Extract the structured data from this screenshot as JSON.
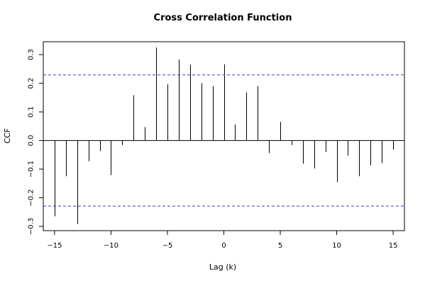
{
  "chart_data": {
    "type": "bar",
    "title": "Cross Correlation Function",
    "xlabel": "Lag (k)",
    "ylabel": "CCF",
    "xlim": [
      -16,
      16
    ],
    "ylim": [
      -0.315,
      0.345
    ],
    "x_ticks": [
      -15,
      -10,
      -5,
      0,
      5,
      10,
      15
    ],
    "x_tick_labels": [
      "−15",
      "−10",
      "−5",
      "0",
      "5",
      "10",
      "15"
    ],
    "y_ticks": [
      -0.3,
      -0.2,
      -0.1,
      0.0,
      0.1,
      0.2,
      0.3
    ],
    "y_tick_labels": [
      "−0.3",
      "−0.2",
      "−0.1",
      "0.0",
      "0.1",
      "0.2",
      "0.3"
    ],
    "lags": [
      -15,
      -14,
      -13,
      -12,
      -11,
      -10,
      -9,
      -8,
      -7,
      -6,
      -5,
      -4,
      -3,
      -2,
      -1,
      0,
      1,
      2,
      3,
      4,
      5,
      6,
      7,
      8,
      9,
      10,
      11,
      12,
      13,
      14,
      15
    ],
    "values": [
      -0.265,
      -0.125,
      -0.292,
      -0.073,
      -0.037,
      -0.121,
      -0.016,
      0.158,
      0.047,
      0.325,
      0.196,
      0.283,
      0.265,
      0.2,
      0.19,
      0.266,
      0.056,
      0.168,
      0.19,
      -0.044,
      0.065,
      -0.016,
      -0.081,
      -0.098,
      -0.04,
      -0.145,
      -0.053,
      -0.125,
      -0.087,
      -0.079,
      -0.032
    ],
    "confidence_band": [
      -0.229,
      0.229
    ],
    "grid": false
  }
}
